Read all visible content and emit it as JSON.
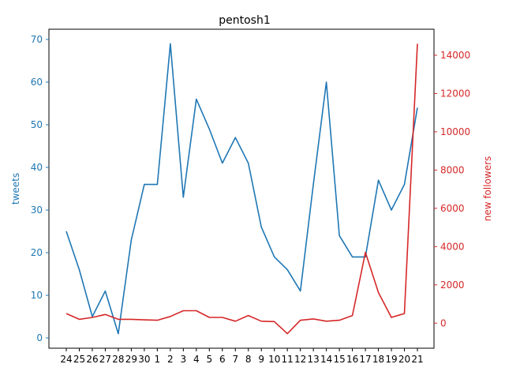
{
  "chart_data": {
    "type": "line",
    "title": "pentosh1",
    "xlabel": "",
    "categories": [
      "24",
      "25",
      "26",
      "27",
      "28",
      "29",
      "30",
      "1",
      "2",
      "3",
      "4",
      "5",
      "6",
      "7",
      "8",
      "9",
      "10",
      "11",
      "12",
      "13",
      "14",
      "15",
      "16",
      "17",
      "18",
      "19",
      "20",
      "21"
    ],
    "series": [
      {
        "name": "tweets",
        "axis": "left",
        "color": "#1f77b4",
        "values": [
          25,
          16,
          5,
          11,
          1,
          23,
          36,
          36,
          69,
          33,
          56,
          49,
          41,
          47,
          41,
          26,
          19,
          16,
          11,
          36,
          60,
          24,
          19,
          19,
          37,
          30,
          36,
          54
        ]
      },
      {
        "name": "new followers",
        "axis": "right",
        "color": "#d62728",
        "values": [
          500,
          200,
          300,
          450,
          200,
          200,
          170,
          150,
          350,
          650,
          650,
          300,
          300,
          100,
          400,
          100,
          80,
          -550,
          150,
          220,
          100,
          150,
          400,
          3700,
          1600,
          300,
          500,
          14600
        ]
      }
    ],
    "y_left": {
      "label": "tweets",
      "color": "#1f77b4",
      "range": [
        -2.4,
        72.4
      ],
      "ticks": [
        0,
        10,
        20,
        30,
        40,
        50,
        60,
        70
      ]
    },
    "y_right": {
      "label": "new followers",
      "color": "#d62728",
      "range": [
        -1310,
        15360
      ],
      "ticks": [
        0,
        2000,
        4000,
        6000,
        8000,
        10000,
        12000,
        14000
      ]
    },
    "grid": false,
    "legend": "none"
  }
}
